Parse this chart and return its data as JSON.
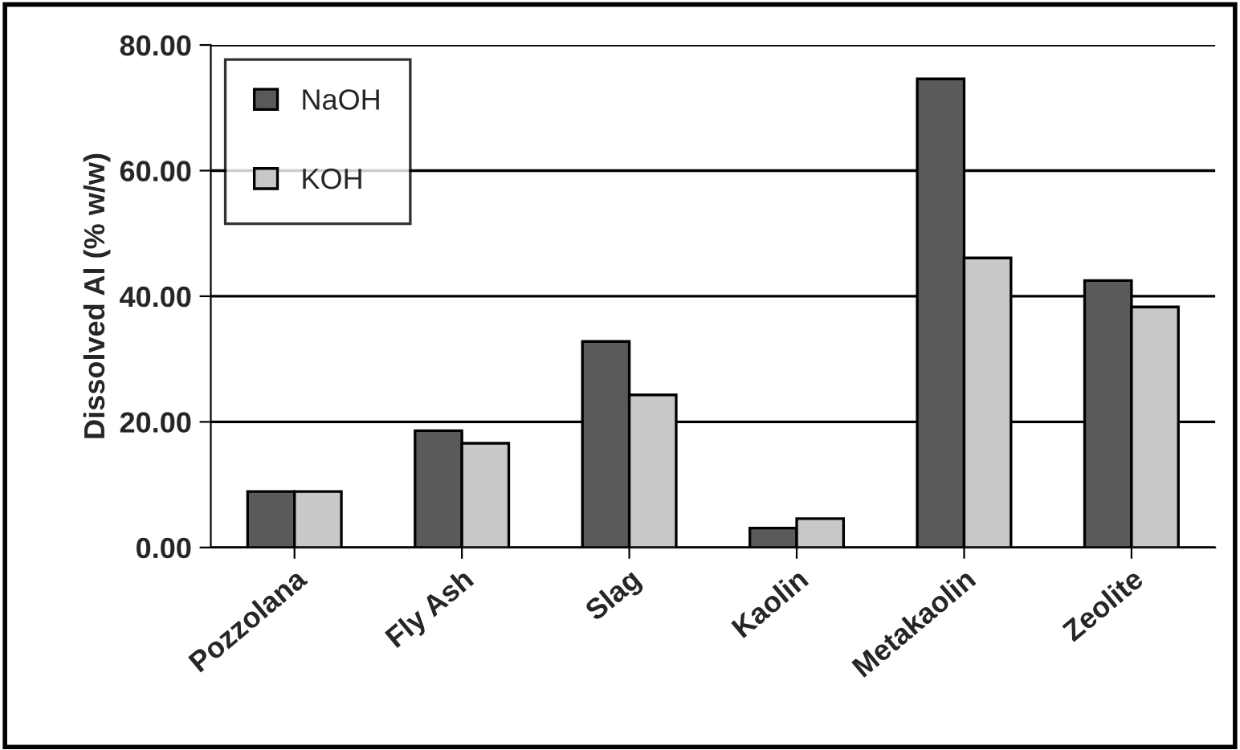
{
  "chart_data": {
    "type": "bar",
    "ylabel": "Dissolved Al (% w/w)",
    "categories": [
      "Pozzolana",
      "Fly Ash",
      "Slag",
      "Kaolin",
      "Metakaolin",
      "Zeolite"
    ],
    "series": [
      {
        "name": "NaOH",
        "color": "#5a5a5a",
        "values": [
          8.9,
          18.6,
          32.8,
          3.1,
          74.6,
          42.5
        ]
      },
      {
        "name": "KOH",
        "color": "#c8c8c8",
        "values": [
          8.9,
          16.6,
          24.3,
          4.6,
          46.1,
          38.3
        ]
      }
    ],
    "ylim": [
      0,
      80
    ],
    "yticks": [
      {
        "value": 0,
        "label": "0.00"
      },
      {
        "value": 20,
        "label": "20.00"
      },
      {
        "value": 40,
        "label": "40.00"
      },
      {
        "value": 60,
        "label": "60.00"
      },
      {
        "value": 80,
        "label": "80.00"
      }
    ],
    "grid": "y",
    "legend": "top left"
  }
}
